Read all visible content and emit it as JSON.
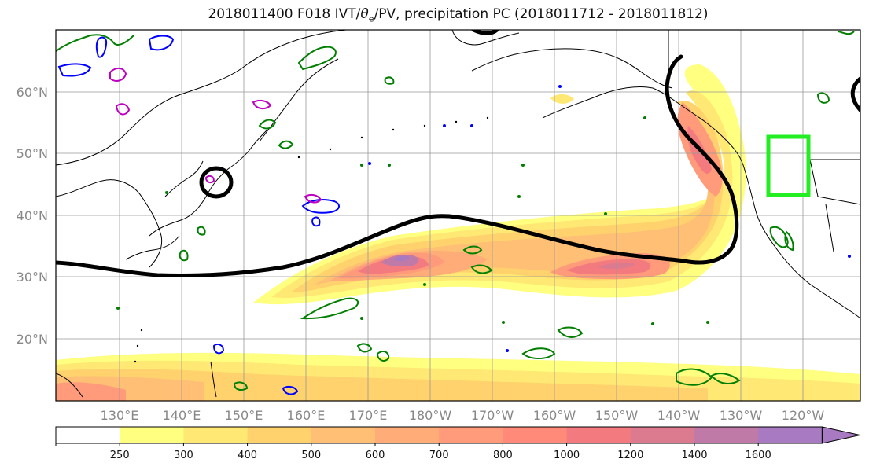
{
  "title": {
    "prefix": "2018011400 F018 IVT/",
    "theta": "θ",
    "theta_sub": "e",
    "suffix": "/PV, precipitation PC (2018011712 - 2018011812)"
  },
  "lat_labels": [
    "60°N",
    "50°N",
    "40°N",
    "30°N",
    "20°N"
  ],
  "lon_labels": [
    "130°E",
    "140°E",
    "150°E",
    "160°E",
    "170°E",
    "180°W",
    "170°W",
    "160°W",
    "150°W",
    "140°W",
    "130°W",
    "120°W"
  ],
  "colorbar": {
    "ticks": [
      "250",
      "300",
      "400",
      "500",
      "600",
      "700",
      "800",
      "1000",
      "1200",
      "1400",
      "1600"
    ],
    "colors": [
      "#ffffff",
      "#ffff80",
      "#ffe873",
      "#ffd26e",
      "#ffbf75",
      "#ffac78",
      "#ff9a7a",
      "#ff8a7a",
      "#f37b7f",
      "#dc7a8f",
      "#c07aa8",
      "#a77ac2"
    ]
  },
  "colors": {
    "pv_contour": "#000000",
    "precip_contour": "#007f00",
    "theta_contour_cold": "#0000ff",
    "theta_contour_magenta": "#c000c0",
    "target_box": "#22ee22"
  }
}
